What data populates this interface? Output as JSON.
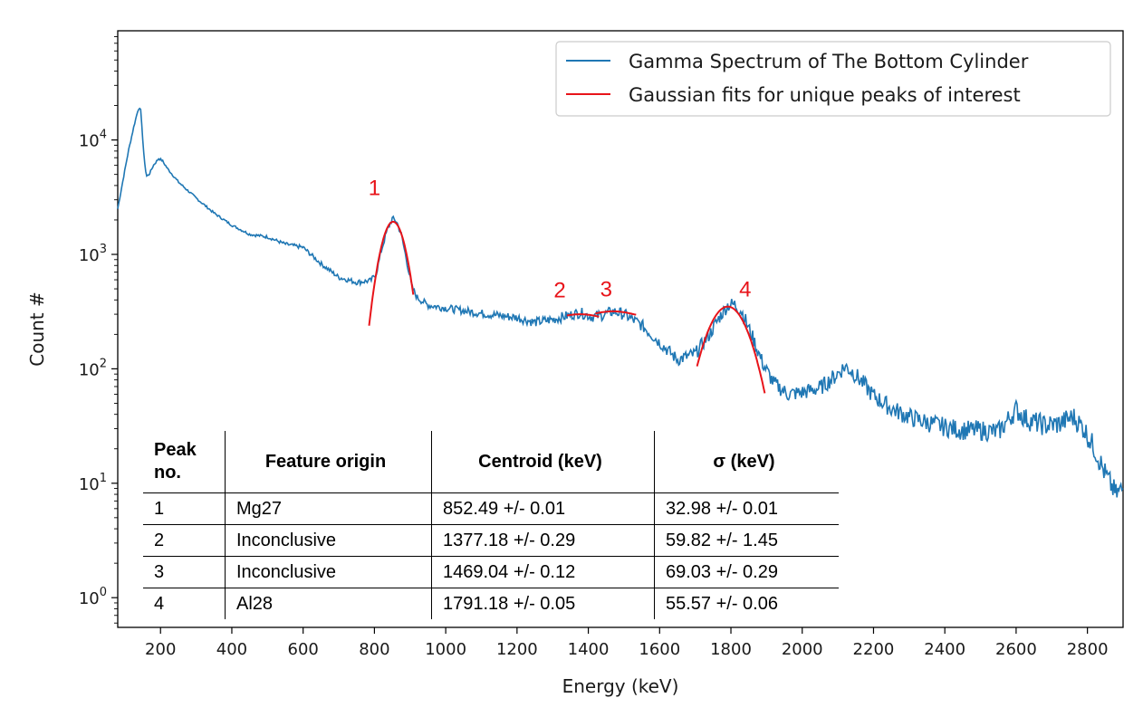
{
  "chart_data": {
    "type": "line",
    "xlabel": "Energy (keV)",
    "ylabel": "Count #",
    "yscale": "log",
    "xlim": [
      80,
      2900
    ],
    "ylim": [
      0.55,
      90000
    ],
    "x_ticks": [
      "200",
      "400",
      "600",
      "800",
      "1000",
      "1200",
      "1400",
      "1600",
      "1800",
      "2000",
      "2200",
      "2400",
      "2600",
      "2800"
    ],
    "y_ticks": [
      {
        "value": 1,
        "mantissa": "10",
        "exponent": "0"
      },
      {
        "value": 10,
        "mantissa": "10",
        "exponent": "1"
      },
      {
        "value": 100,
        "mantissa": "10",
        "exponent": "2"
      },
      {
        "value": 1000,
        "mantissa": "10",
        "exponent": "3"
      },
      {
        "value": 10000,
        "mantissa": "10",
        "exponent": "4"
      }
    ],
    "legend": {
      "position": "top-right",
      "entries": [
        {
          "label": "Gamma Spectrum of The Bottom Cylinder",
          "color": "#1f77b4"
        },
        {
          "label": "Gaussian fits for unique peaks of interest",
          "color": "#e8141a"
        }
      ]
    },
    "series": [
      {
        "name": "Gamma Spectrum of The Bottom Cylinder",
        "color": "#1f77b4",
        "points": [
          [
            80,
            2500
          ],
          [
            95,
            4500
          ],
          [
            110,
            8000
          ],
          [
            125,
            13000
          ],
          [
            138,
            19000
          ],
          [
            145,
            18000
          ],
          [
            152,
            8000
          ],
          [
            160,
            4800
          ],
          [
            168,
            5000
          ],
          [
            180,
            6000
          ],
          [
            195,
            6900
          ],
          [
            205,
            6600
          ],
          [
            220,
            5600
          ],
          [
            250,
            4300
          ],
          [
            300,
            3100
          ],
          [
            350,
            2300
          ],
          [
            400,
            1800
          ],
          [
            450,
            1500
          ],
          [
            500,
            1420
          ],
          [
            550,
            1230
          ],
          [
            600,
            1150
          ],
          [
            650,
            830
          ],
          [
            700,
            630
          ],
          [
            750,
            570
          ],
          [
            790,
            590
          ],
          [
            805,
            680
          ],
          [
            820,
            1100
          ],
          [
            835,
            1600
          ],
          [
            850,
            2050
          ],
          [
            862,
            1950
          ],
          [
            875,
            1500
          ],
          [
            890,
            900
          ],
          [
            905,
            520
          ],
          [
            920,
            420
          ],
          [
            950,
            360
          ],
          [
            1000,
            340
          ],
          [
            1100,
            305
          ],
          [
            1200,
            280
          ],
          [
            1250,
            255
          ],
          [
            1300,
            270
          ],
          [
            1340,
            290
          ],
          [
            1377,
            310
          ],
          [
            1410,
            285
          ],
          [
            1440,
            295
          ],
          [
            1469,
            318
          ],
          [
            1500,
            300
          ],
          [
            1550,
            240
          ],
          [
            1600,
            170
          ],
          [
            1650,
            120
          ],
          [
            1700,
            135
          ],
          [
            1740,
            200
          ],
          [
            1770,
            290
          ],
          [
            1791,
            360
          ],
          [
            1810,
            365
          ],
          [
            1830,
            320
          ],
          [
            1860,
            190
          ],
          [
            1890,
            110
          ],
          [
            1920,
            75
          ],
          [
            1960,
            60
          ],
          [
            2000,
            62
          ],
          [
            2050,
            68
          ],
          [
            2090,
            85
          ],
          [
            2120,
            105
          ],
          [
            2140,
            95
          ],
          [
            2170,
            75
          ],
          [
            2200,
            58
          ],
          [
            2250,
            45
          ],
          [
            2300,
            38
          ],
          [
            2350,
            34
          ],
          [
            2400,
            31
          ],
          [
            2450,
            29
          ],
          [
            2500,
            29
          ],
          [
            2550,
            28
          ],
          [
            2600,
            44
          ],
          [
            2630,
            36
          ],
          [
            2680,
            32
          ],
          [
            2720,
            33
          ],
          [
            2760,
            38
          ],
          [
            2790,
            30
          ],
          [
            2820,
            20
          ],
          [
            2850,
            12
          ],
          [
            2880,
            8
          ],
          [
            2900,
            9
          ]
        ]
      }
    ],
    "fits": [
      {
        "peak": "1",
        "centroid": 852.49,
        "sigma": 32.98,
        "amplitude": 1930,
        "range": [
          785,
          910
        ]
      },
      {
        "peak": "2",
        "centroid": 1377.18,
        "sigma": 59.82,
        "amplitude": 45,
        "baseline": 255,
        "range": [
          1340,
          1430
        ]
      },
      {
        "peak": "3",
        "centroid": 1469.04,
        "sigma": 69.03,
        "amplitude": 60,
        "baseline": 258,
        "range": [
          1420,
          1535
        ]
      },
      {
        "peak": "4",
        "centroid": 1791.18,
        "sigma": 55.57,
        "amplitude": 350,
        "range": [
          1705,
          1895
        ]
      }
    ],
    "annotations": [
      {
        "text": "1",
        "x": 800,
        "y": 3300
      },
      {
        "text": "2",
        "x": 1320,
        "y": 420
      },
      {
        "text": "3",
        "x": 1450,
        "y": 430
      },
      {
        "text": "4",
        "x": 1840,
        "y": 430
      }
    ]
  },
  "table": {
    "headers": [
      [
        "Peak",
        "no."
      ],
      "Feature origin",
      "Centroid (keV)",
      "σ (keV)"
    ],
    "rows": [
      [
        "1",
        "Mg27",
        "852.49 +/- 0.01",
        "32.98 +/- 0.01"
      ],
      [
        "2",
        "Inconclusive",
        "1377.18 +/- 0.29",
        "59.82 +/- 1.45"
      ],
      [
        "3",
        "Inconclusive",
        "1469.04 +/- 0.12",
        "69.03 +/- 0.29"
      ],
      [
        "4",
        "Al28",
        "1791.18 +/- 0.05",
        "55.57 +/- 0.06"
      ]
    ]
  }
}
